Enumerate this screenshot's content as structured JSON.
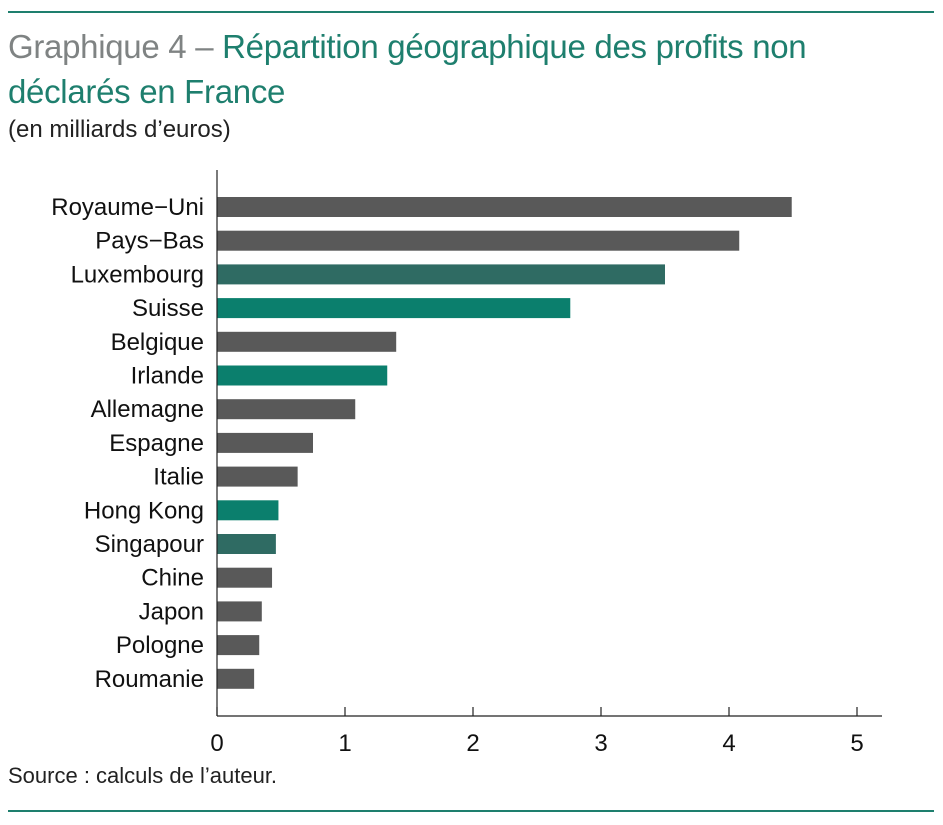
{
  "header": {
    "title_prefix": "Graphique 4 – ",
    "title_main": "Répartition géographique des profits non déclarés en France",
    "subtitle": "(en milliards d’euros)"
  },
  "footer": {
    "source": "Source : calculs de l’auteur."
  },
  "colors": {
    "rule": "#1e7f6e",
    "title": "#1e7f6e",
    "title_prefix": "#7f8383",
    "bar_default": "#595959",
    "bar_teal_bright": "#0b7f6d",
    "bar_teal_dark": "#2f6b63",
    "axis": "#222222"
  },
  "chart_data": {
    "type": "bar",
    "orientation": "horizontal",
    "title": "Répartition géographique des profits non déclarés en France",
    "subtitle": "(en milliards d’euros)",
    "xlabel": "",
    "ylabel": "",
    "xlim": [
      0,
      5
    ],
    "xticks": [
      0,
      1,
      2,
      3,
      4,
      5
    ],
    "grid": false,
    "legend": "none",
    "categories": [
      "Royaume−Uni",
      "Pays−Bas",
      "Luxembourg",
      "Suisse",
      "Belgique",
      "Irlande",
      "Allemagne",
      "Espagne",
      "Italie",
      "Hong Kong",
      "Singapour",
      "Chine",
      "Japon",
      "Pologne",
      "Roumanie"
    ],
    "values": [
      4.49,
      4.08,
      3.5,
      2.76,
      1.4,
      1.33,
      1.08,
      0.75,
      0.63,
      0.48,
      0.46,
      0.43,
      0.35,
      0.33,
      0.29
    ],
    "bar_colors": [
      "#595959",
      "#595959",
      "#2f6b63",
      "#0b7f6d",
      "#595959",
      "#0b7f6d",
      "#595959",
      "#595959",
      "#595959",
      "#0b7f6d",
      "#2f6b63",
      "#595959",
      "#595959",
      "#595959",
      "#595959"
    ]
  }
}
